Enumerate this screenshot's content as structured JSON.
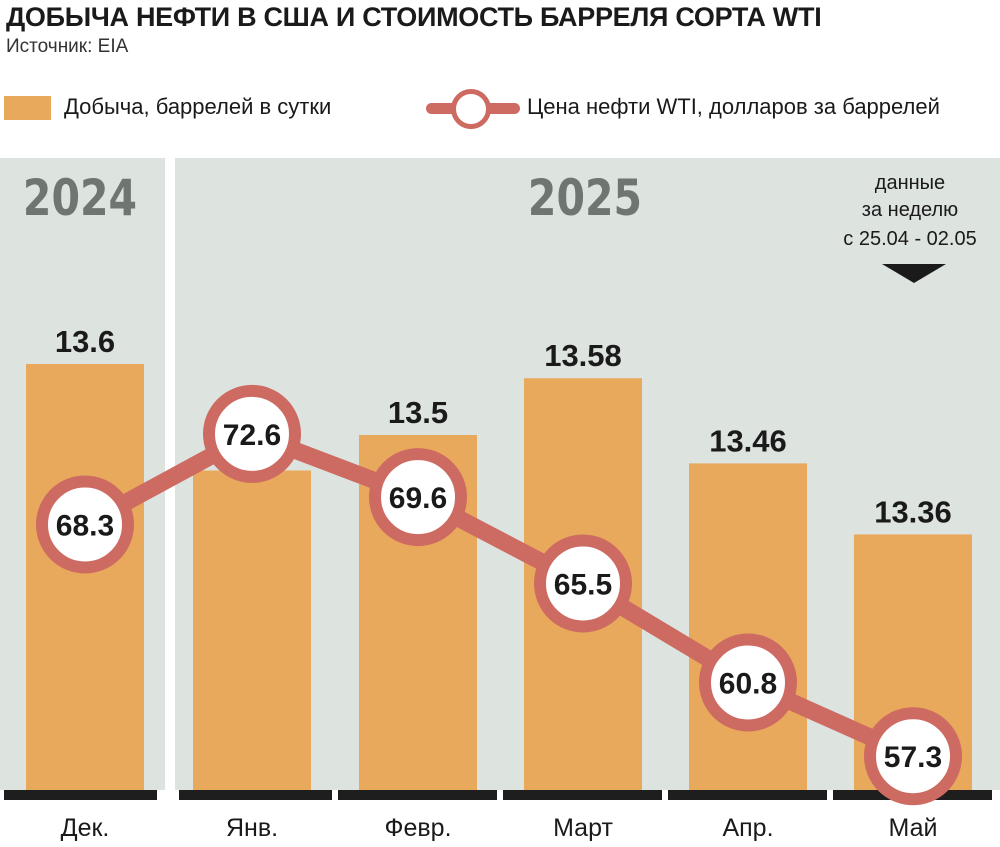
{
  "title": "ДОБЫЧА НЕФТИ В США И СТОИМОСТЬ БАРРЕЛЯ СОРТА WTI",
  "source": "Источник: EIA",
  "legend": {
    "bars_label": "Добыча, баррелей в сутки",
    "line_label": "Цена нефти WTI, долларов за баррелей"
  },
  "year_labels": {
    "left": "2024",
    "right": "2025"
  },
  "note": {
    "line1": "данные",
    "line2": "за неделю",
    "line3": "с 25.04 - 02.05"
  },
  "colors": {
    "bar": "#E8A95C",
    "line": "#CD6A62",
    "panel": "#DDE3DF",
    "circle_fill": "#FFFFFF"
  },
  "chart_data": {
    "type": "bar",
    "categories": [
      "Дек.",
      "Янв.",
      "Февр.",
      "Март",
      "Апр.",
      "Май"
    ],
    "series": [
      {
        "name": "Добыча, баррелей в сутки",
        "type": "bar",
        "values": [
          13.6,
          13.45,
          13.5,
          13.58,
          13.46,
          13.36
        ]
      },
      {
        "name": "Цена нефти WTI, долларов за баррелей",
        "type": "line",
        "values": [
          68.3,
          72.6,
          69.6,
          65.5,
          60.8,
          57.3
        ]
      }
    ]
  }
}
